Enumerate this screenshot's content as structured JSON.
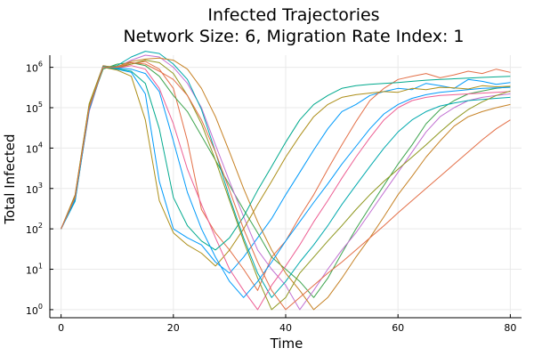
{
  "chart_data": {
    "type": "line",
    "title_line1": "Infected Trajectories",
    "title_line2": "Network Size: 6, Migration Rate Index: 1",
    "xlabel": "Time",
    "ylabel": "Total Infected",
    "xlim": [
      -2,
      82
    ],
    "ylim_log10": [
      -0.2,
      6.3
    ],
    "yscale": "log10",
    "grid": true,
    "legend": "none",
    "x_ticks": [
      0,
      20,
      40,
      60,
      80
    ],
    "x_tick_labels": [
      "0",
      "20",
      "40",
      "60",
      "80"
    ],
    "y_ticks_log10": [
      0,
      1,
      2,
      3,
      4,
      5,
      6
    ],
    "y_tick_base": "10",
    "y_tick_exponents": [
      "0",
      "1",
      "2",
      "3",
      "4",
      "5",
      "6"
    ],
    "series_colors": [
      "#009AFA",
      "#E36F47",
      "#3EA44E",
      "#C271D2",
      "#AC8E18",
      "#00A9AD",
      "#ED5E93",
      "#C68225",
      "#00A98D",
      "#8E971E"
    ],
    "x": [
      0,
      2.5,
      5,
      7.5,
      10,
      12.5,
      15,
      17.5,
      20,
      22.5,
      25,
      27.5,
      30,
      32.5,
      35,
      37.5,
      40,
      42.5,
      45,
      47.5,
      50,
      52.5,
      55,
      57.5,
      60,
      62.5,
      65,
      67.5,
      70,
      72.5,
      75,
      77.5,
      80
    ],
    "series": [
      {
        "values": [
          100,
          480,
          90000,
          1000000,
          900000,
          750000,
          220000,
          1500,
          100,
          60,
          40,
          15,
          8,
          20,
          60,
          180,
          700,
          2500,
          9000,
          30000,
          80000,
          120000,
          200000,
          250000,
          300000,
          280000,
          400000,
          350000,
          300000,
          500000,
          450000,
          380000,
          420000
        ]
      },
      {
        "values": [
          100,
          700,
          120000,
          1100000,
          950000,
          1200000,
          1400000,
          900000,
          300000,
          15000,
          300,
          80,
          30,
          10,
          3,
          20,
          50,
          200,
          700,
          3000,
          12000,
          45000,
          150000,
          300000,
          500000,
          600000,
          700000,
          550000,
          650000,
          800000,
          700000,
          900000,
          750000
        ]
      },
      {
        "values": [
          100,
          600,
          100000,
          900000,
          1200000,
          1300000,
          1100000,
          600000,
          200000,
          80000,
          20000,
          5000,
          1200,
          300,
          80,
          20,
          10,
          5,
          2,
          6,
          25,
          100,
          350,
          1200,
          4000,
          12000,
          40000,
          90000,
          150000,
          220000,
          260000,
          300000,
          330000
        ]
      },
      {
        "values": [
          100,
          550,
          80000,
          1050000,
          1000000,
          1500000,
          2000000,
          1800000,
          1000000,
          400000,
          100000,
          12000,
          1500,
          200,
          30,
          10,
          4,
          1,
          3,
          10,
          30,
          80,
          250,
          800,
          2500,
          8000,
          25000,
          60000,
          100000,
          150000,
          180000,
          200000,
          220000
        ]
      },
      {
        "values": [
          100,
          650,
          110000,
          1000000,
          850000,
          600000,
          50000,
          500,
          80,
          40,
          25,
          12,
          30,
          100,
          400,
          1500,
          6000,
          20000,
          60000,
          120000,
          180000,
          210000,
          230000,
          250000,
          240000,
          300000,
          280000,
          320000,
          310000,
          290000,
          350000,
          330000,
          340000
        ]
      },
      {
        "values": [
          100,
          520,
          95000,
          980000,
          1100000,
          1800000,
          2500000,
          2200000,
          1200000,
          500000,
          90000,
          8000,
          600,
          60,
          8,
          2,
          5,
          15,
          40,
          120,
          400,
          1200,
          3500,
          10000,
          25000,
          50000,
          80000,
          110000,
          130000,
          150000,
          160000,
          170000,
          180000
        ]
      },
      {
        "values": [
          100,
          580,
          105000,
          1020000,
          950000,
          1100000,
          900000,
          300000,
          40000,
          3000,
          400,
          60,
          10,
          3,
          1,
          4,
          12,
          40,
          150,
          500,
          1800,
          6000,
          18000,
          50000,
          100000,
          150000,
          180000,
          200000,
          210000,
          220000,
          230000,
          240000,
          250000
        ]
      },
      {
        "values": [
          100,
          620,
          115000,
          990000,
          1050000,
          1400000,
          1600000,
          1700000,
          1500000,
          900000,
          300000,
          60000,
          8000,
          1000,
          150,
          30,
          8,
          3,
          1,
          2,
          6,
          20,
          60,
          200,
          700,
          2000,
          6000,
          15000,
          35000,
          60000,
          80000,
          100000,
          120000
        ]
      },
      {
        "values": [
          100,
          510,
          88000,
          1010000,
          920000,
          800000,
          400000,
          30000,
          600,
          120,
          50,
          30,
          60,
          200,
          900,
          3500,
          14000,
          50000,
          120000,
          200000,
          300000,
          350000,
          380000,
          400000,
          420000,
          450000,
          480000,
          500000,
          520000,
          540000,
          560000,
          580000,
          600000
        ]
      },
      {
        "values": [
          100,
          680,
          125000,
          1080000,
          1000000,
          1200000,
          1500000,
          1300000,
          700000,
          200000,
          40000,
          5000,
          500,
          50,
          6,
          1,
          2,
          8,
          20,
          50,
          120,
          300,
          700,
          1500,
          3000,
          6000,
          12000,
          25000,
          50000,
          90000,
          140000,
          200000,
          260000
        ]
      },
      {
        "values": [
          100,
          540,
          92000,
          1030000,
          970000,
          900000,
          700000,
          250000,
          15000,
          800,
          100,
          20,
          5,
          2,
          5,
          15,
          50,
          150,
          450,
          1300,
          4000,
          11000,
          30000,
          70000,
          120000,
          170000,
          210000,
          240000,
          260000,
          280000,
          300000,
          310000,
          320000
        ]
      },
      {
        "values": [
          100,
          600,
          100000,
          1000000,
          1000000,
          1300000,
          1200000,
          800000,
          500000,
          200000,
          50000,
          8000,
          900,
          100,
          15,
          3,
          1,
          2,
          4,
          8,
          15,
          30,
          60,
          120,
          250,
          500,
          1000,
          2000,
          4000,
          8000,
          16000,
          30000,
          50000
        ]
      }
    ]
  }
}
